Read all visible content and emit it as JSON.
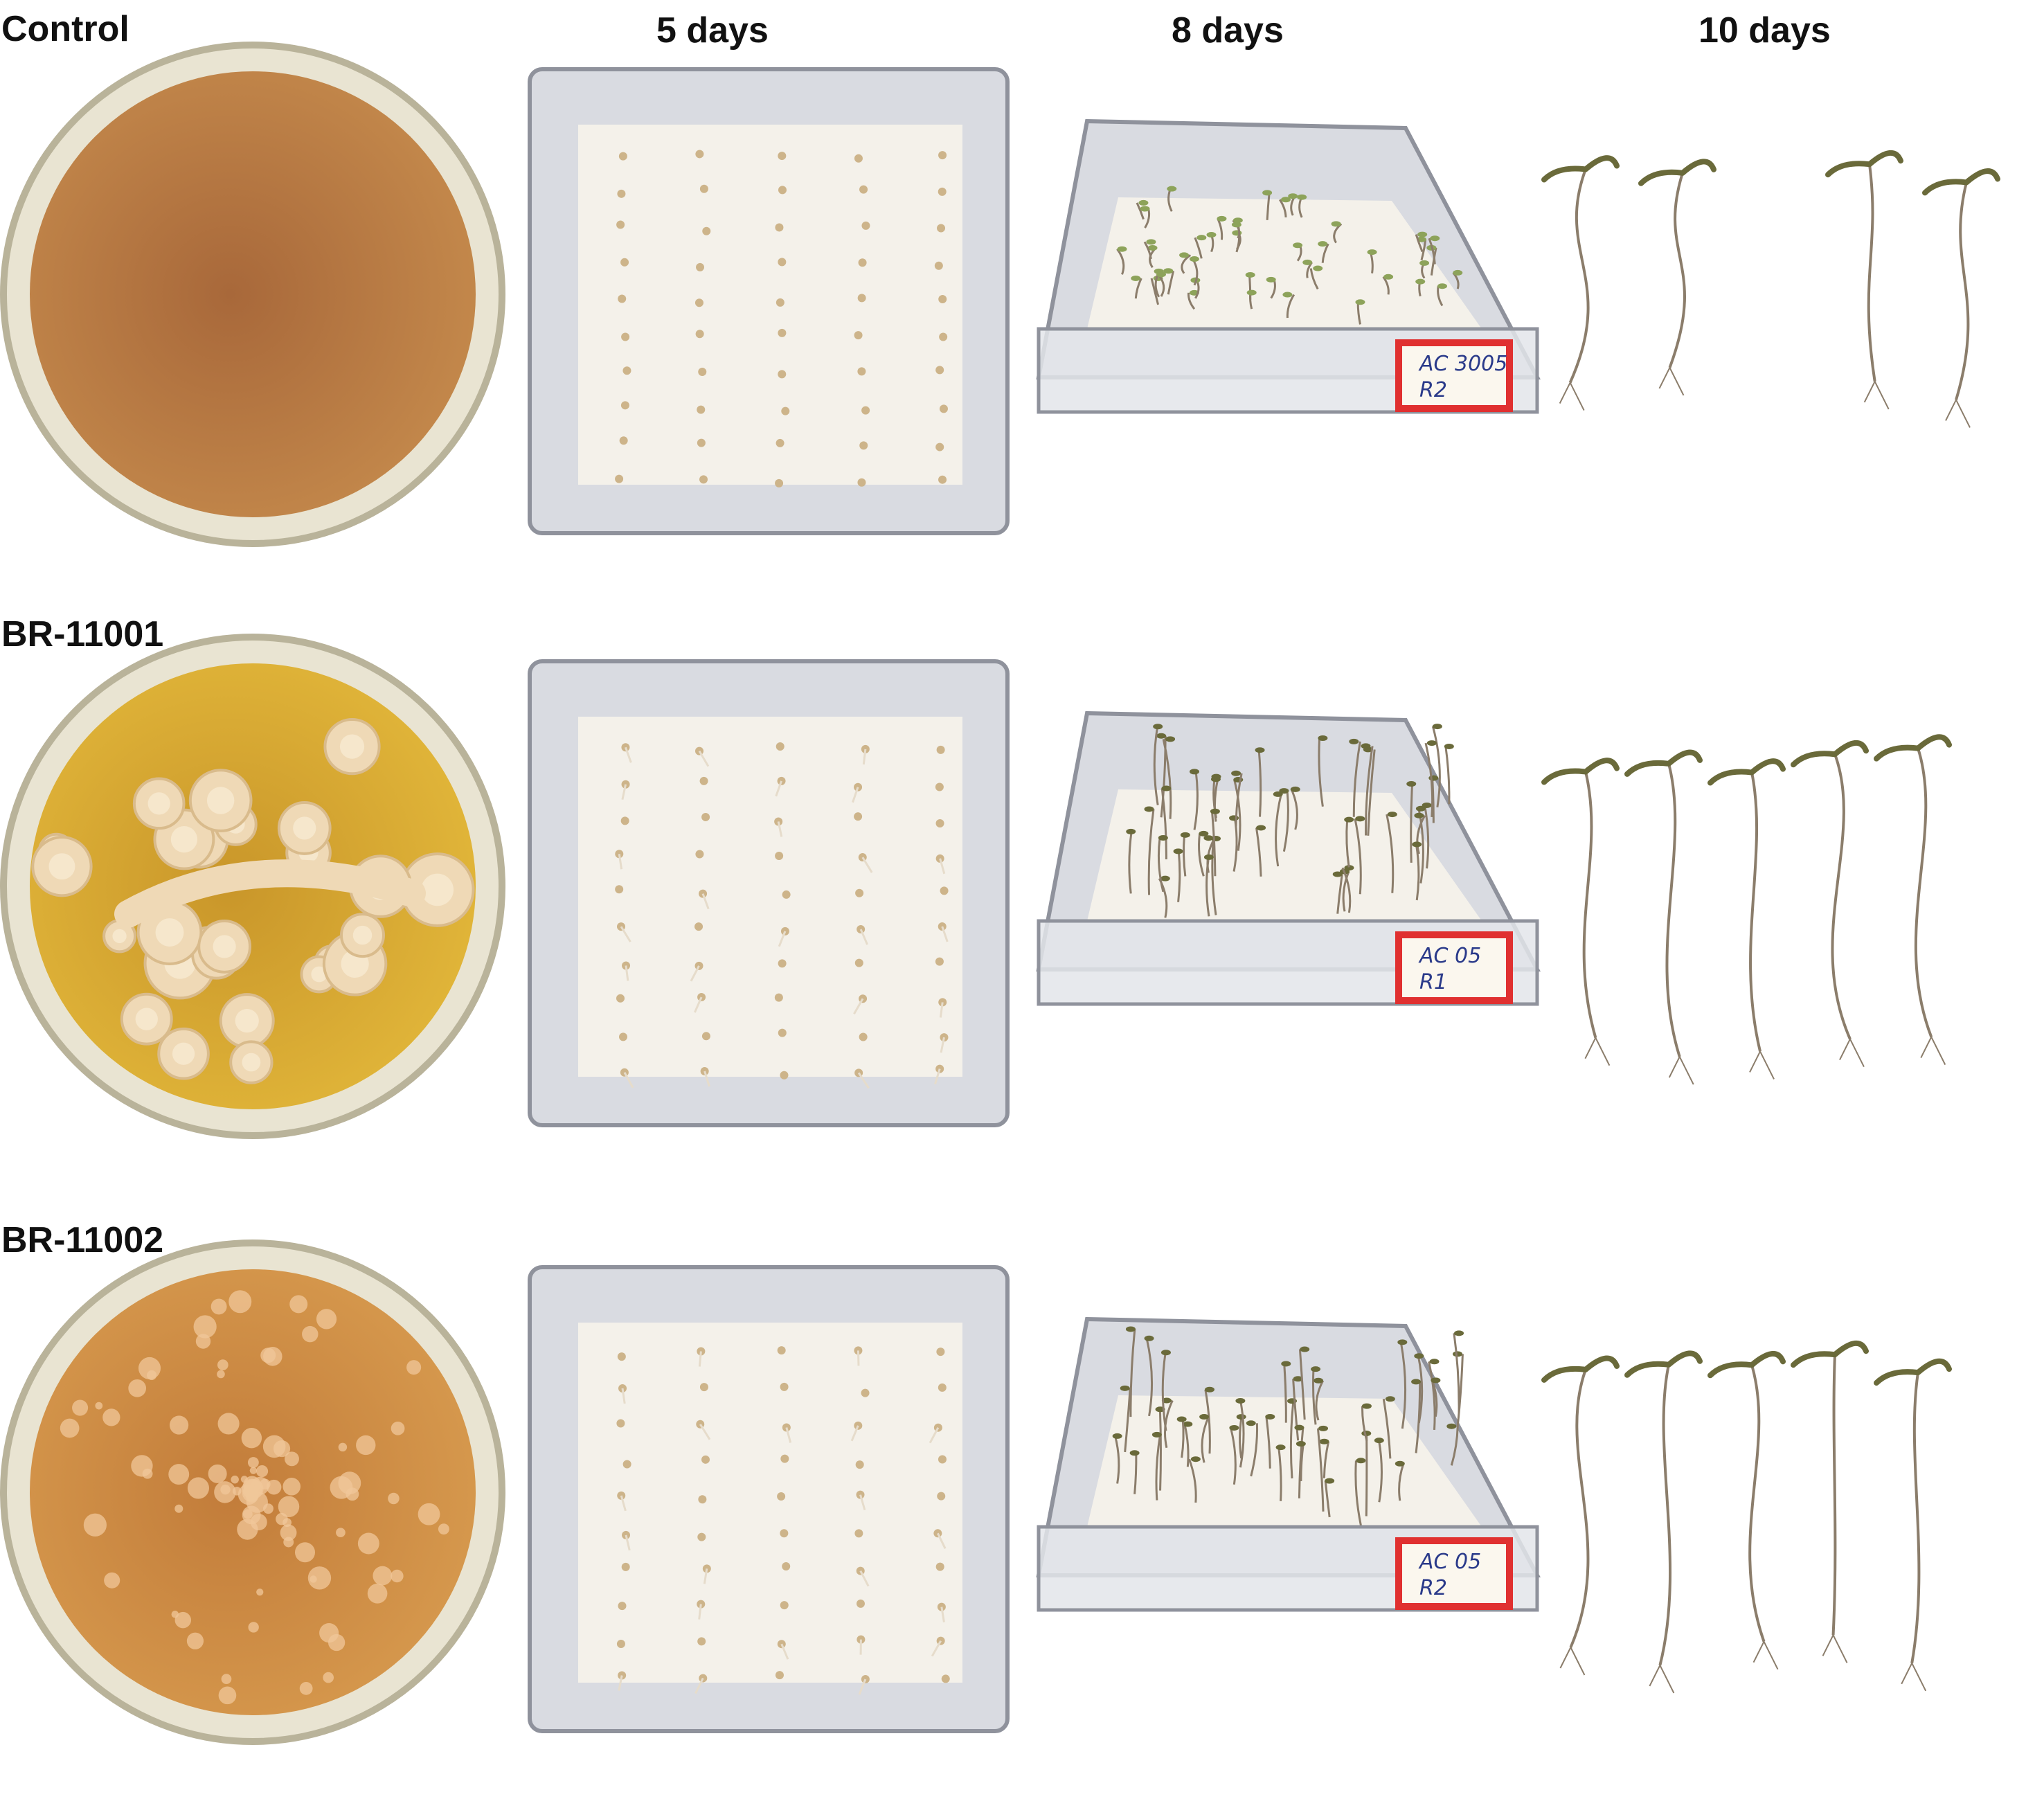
{
  "column_headers": [
    "5 days",
    "8 days",
    "10 days"
  ],
  "rows": [
    {
      "label": "Control",
      "plate": {
        "agar": "#c58a4c",
        "agar_dark": "#a8683a",
        "colonies": false
      },
      "box_note": [
        "AC 3005",
        "R2"
      ]
    },
    {
      "label": "BR-11001",
      "plate": {
        "agar": "#e2b73a",
        "agar_dark": "#c9962a",
        "colonies": "lobed"
      },
      "box_note": [
        "AC 05",
        "R1"
      ]
    },
    {
      "label": "BR-11002",
      "plate": {
        "agar": "#d79a4e",
        "agar_dark": "#c27c3a",
        "colonies": "round"
      },
      "box_note": [
        "AC 05",
        "R2"
      ]
    }
  ],
  "colors": {
    "tray": "#d9dbe1",
    "tray_edge": "#8f929c",
    "paper": "#f4f1ea",
    "seed": "#cdb48a",
    "seedling_stem": "#8b7d6b",
    "cotyledon": "#6a6a3a",
    "note_red": "#e03030",
    "note_ink": "#2a3a8a"
  }
}
